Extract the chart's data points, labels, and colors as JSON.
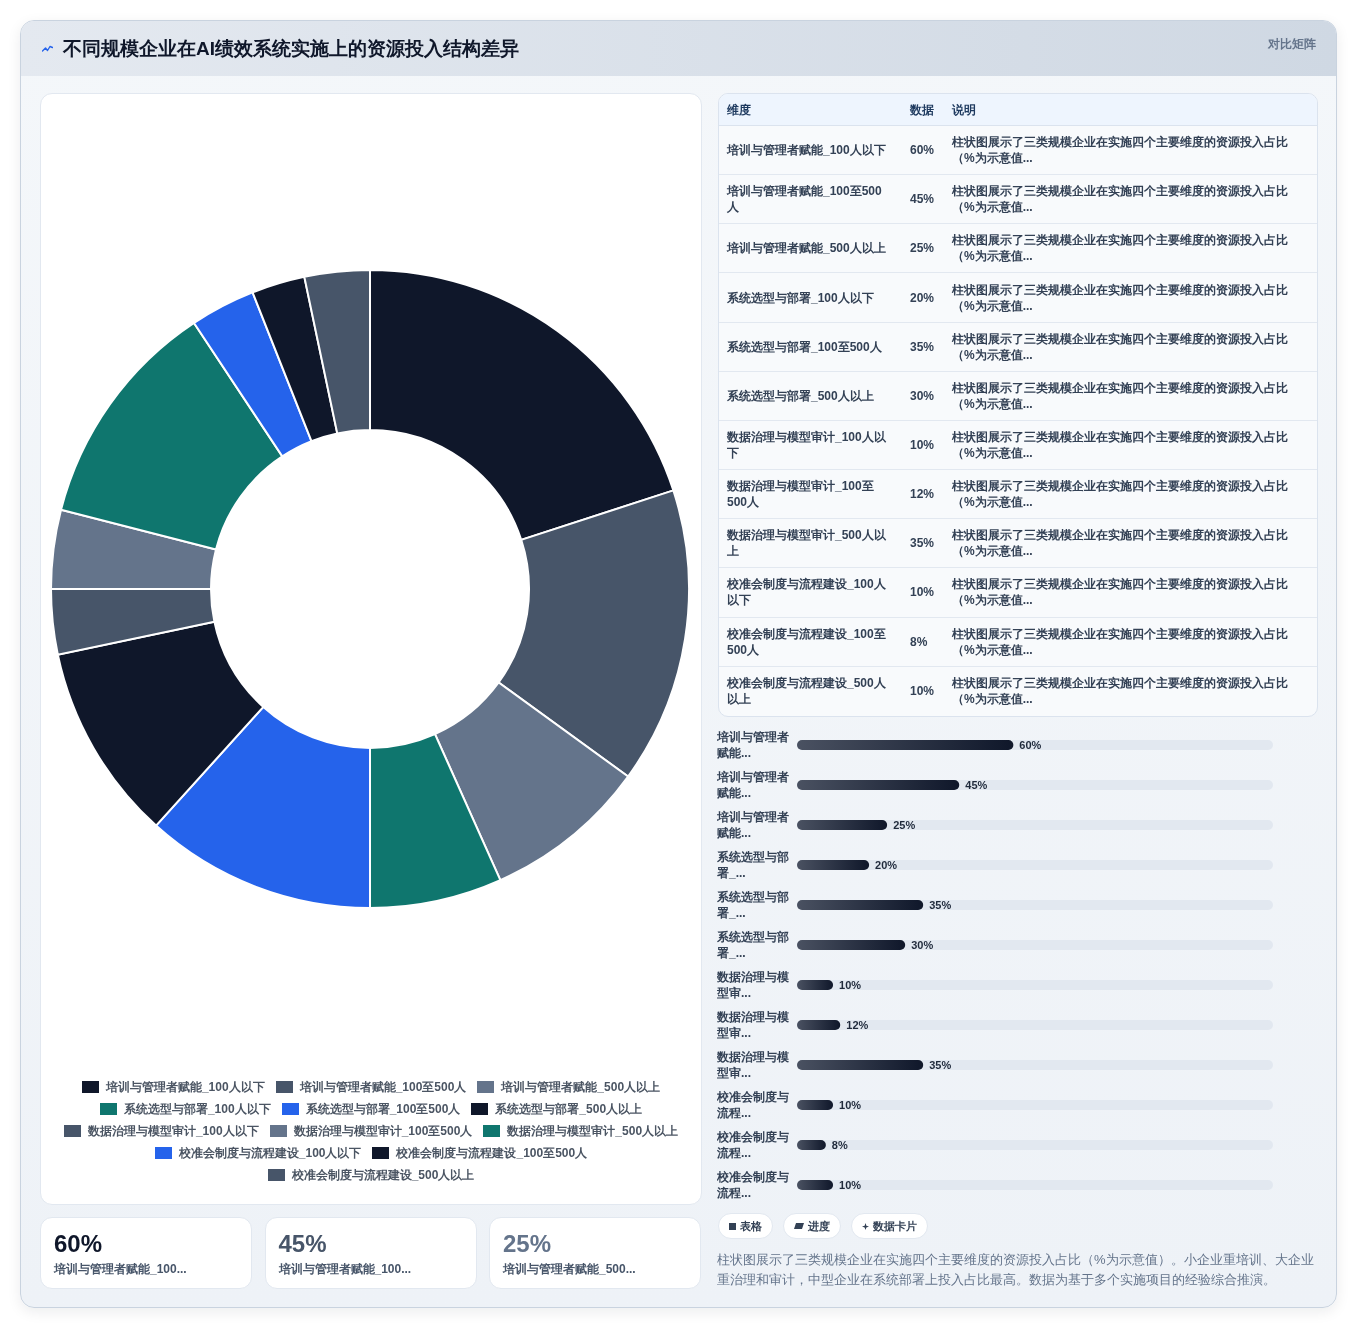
{
  "chart_data": [
    {
      "type": "donut",
      "title": "不同规模企业在AI绩效系统实施上的资源投入结构差异",
      "categories": [
        "培训与管理者赋能_100人以下",
        "培训与管理者赋能_100至500人",
        "培训与管理者赋能_500人以上",
        "系统选型与部署_100人以下",
        "系统选型与部署_100至500人",
        "系统选型与部署_500人以上",
        "数据治理与模型审计_100人以下",
        "数据治理与模型审计_100至500人",
        "数据治理与模型审计_500人以上",
        "校准会制度与流程建设_100人以下",
        "校准会制度与流程建设_100至500人",
        "校准会制度与流程建设_500人以上"
      ],
      "values": [
        20,
        15,
        8.3,
        6.7,
        11.7,
        10,
        3.3,
        4,
        11.7,
        3.3,
        2.7,
        3.3
      ],
      "colors": [
        "#0f172a",
        "#475569",
        "#64748b",
        "#0f766e",
        "#2563eb",
        "#0f172a",
        "#475569",
        "#64748b",
        "#0f766e",
        "#2563eb",
        "#0f172a",
        "#475569"
      ],
      "legend": "bottom"
    },
    {
      "type": "other",
      "subtitle": "对比矩阵",
      "categories": [
        "培训与管理者赋能_100人以下",
        "培训与管理者赋能_100至500人",
        "培训与管理者赋能_500人以上",
        "系统选型与部署_100人以下",
        "系统选型与部署_100至500人",
        "系统选型与部署_500人以上",
        "数据治理与模型审计_100人以下",
        "数据治理与模型审计_100至500人",
        "数据治理与模型审计_500人以上",
        "校准会制度与流程建设_100人以下",
        "校准会制度与流程建设_100至500人",
        "校准会制度与流程建设_500人以上"
      ],
      "value_labels": [
        "60%",
        "45%",
        "25%",
        "20%",
        "35%",
        "30%",
        "10%",
        "12%",
        "35%",
        "10%",
        "8%",
        "10%"
      ],
      "annotations": [
        "维度",
        "数据",
        "说明",
        "柱状图展示了三类规模企业在实施四个主要维度的资源投入占比（%为示意值..."
      ]
    },
    {
      "type": "bar",
      "orientation": "horizontal",
      "categories": [
        "培训与管理者赋能...",
        "培训与管理者赋能...",
        "培训与管理者赋能...",
        "系统选型与部署_...",
        "系统选型与部署_...",
        "系统选型与部署_...",
        "数据治理与模型审...",
        "数据治理与模型审...",
        "数据治理与模型审...",
        "校准会制度与流程...",
        "校准会制度与流程...",
        "校准会制度与流程..."
      ],
      "values": [
        60,
        45,
        25,
        20,
        35,
        30,
        10,
        12,
        35,
        10,
        8,
        10
      ],
      "value_labels": [
        "60%",
        "45%",
        "25%",
        "20%",
        "35%",
        "30%",
        "10%",
        "12%",
        "35%",
        "10%",
        "8%",
        "10%"
      ],
      "color": "#0f172a",
      "xlim": [
        0,
        132
      ],
      "tick_labels": "y",
      "annotations": [
        "柱状图展示了三类规模企业在实施四个主要维度的资源投入占比（%为示意值）。小企业重培训、大企业重治理和审计，中型企业在系统部署上投入占比最高。数据为基于多个实施项目的经验综合推演。",
        "表格",
        "进度",
        "数据卡片"
      ]
    },
    {
      "type": "other",
      "categories": [
        "培训与管理者赋能_100...",
        "培训与管理者赋能_100...",
        "培训与管理者赋能_500..."
      ],
      "value_labels": [
        "60%",
        "45%",
        "25%"
      ]
    }
  ]
}
